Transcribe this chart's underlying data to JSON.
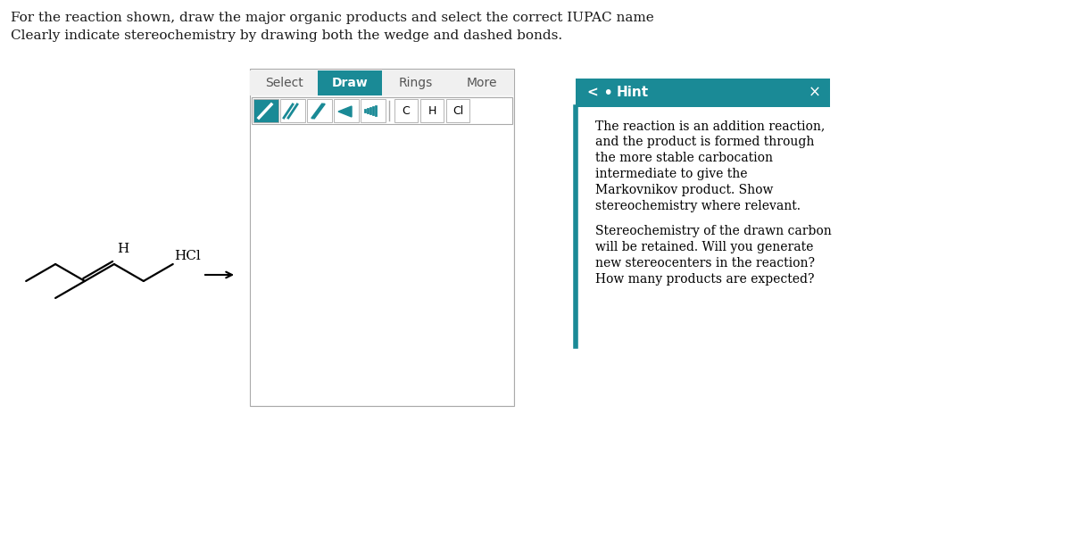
{
  "title_line1": "For the reaction shown, draw the major organic products and select the correct IUPAC name",
  "title_line2": "Clearly indicate stereochemistry by drawing both the wedge and dashed bonds.",
  "hint_header": "Hint",
  "hint_teal": "#1a8a96",
  "hint_text_para1": [
    "The reaction is an addition reaction,",
    "and the product is formed through",
    "the more stable carbocation",
    "intermediate to give the",
    "Markovnikov product. Show",
    "stereochemistry where relevant."
  ],
  "hint_text_para2": [
    "Stereochemistry of the drawn carbon",
    "will be retained. Will you generate",
    "new stereocenters in the reaction?",
    "How many products are expected?"
  ],
  "reagent": "HCl",
  "toolbar_buttons": [
    "Select",
    "Draw",
    "Rings",
    "More"
  ],
  "atom_buttons": [
    "C",
    "H",
    "Cl"
  ],
  "bg_color": "#ffffff",
  "toolbar_teal": "#1a8a96",
  "panel_border": "#cccccc",
  "text_color": "#1a1a1a",
  "icon_teal": "#1a8a96"
}
